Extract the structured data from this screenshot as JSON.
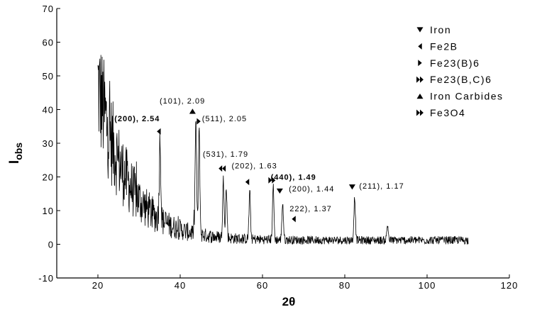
{
  "chart_data": {
    "type": "line",
    "xlabel": "2θ",
    "ylabel": "I",
    "ylabel_sub": "obs",
    "xlim": [
      10,
      120
    ],
    "ylim": [
      -10,
      70
    ],
    "x_ticks": [
      20,
      40,
      60,
      80,
      100,
      120
    ],
    "y_ticks": [
      -10,
      0,
      10,
      20,
      30,
      40,
      50,
      60,
      70
    ],
    "x_tick_labels": [
      "20",
      "40",
      "60",
      "80",
      "100",
      "120"
    ],
    "y_tick_labels": [
      "-10",
      "0",
      "10",
      "20",
      "30",
      "40",
      "50",
      "60",
      "70"
    ],
    "x_start": 20,
    "x_end": 110,
    "peaks": [
      {
        "x": 35.1,
        "height": 33
      },
      {
        "x": 43.8,
        "height": 38
      },
      {
        "x": 44.6,
        "height": 35
      },
      {
        "x": 50.5,
        "height": 20
      },
      {
        "x": 51.2,
        "height": 17
      },
      {
        "x": 56.9,
        "height": 16
      },
      {
        "x": 62.6,
        "height": 18
      },
      {
        "x": 64.9,
        "height": 13
      },
      {
        "x": 82.4,
        "height": 15
      },
      {
        "x": 90.4,
        "height": 6
      }
    ],
    "markers": [
      {
        "x": 34.8,
        "y": 33.5,
        "symbol": "triangle-left"
      },
      {
        "x": 43.0,
        "y": 39.5,
        "symbol": "triangle-up"
      },
      {
        "x": 44.5,
        "y": 36.5,
        "symbol": "triangle-right"
      },
      {
        "x": 50.2,
        "y": 22.5,
        "symbol": "double-left"
      },
      {
        "x": 56.3,
        "y": 18.5,
        "symbol": "triangle-left"
      },
      {
        "x": 62.3,
        "y": 19.0,
        "symbol": "double-right"
      },
      {
        "x": 64.2,
        "y": 15.8,
        "symbol": "triangle-down"
      },
      {
        "x": 67.6,
        "y": 7.5,
        "symbol": "triangle-left"
      },
      {
        "x": 81.8,
        "y": 17.0,
        "symbol": "triangle-down"
      }
    ],
    "annotations": [
      {
        "text": "(200), 2.54",
        "x": 24.0,
        "y": 36.5,
        "bold": true
      },
      {
        "text": "(101), 2.09",
        "x": 35.0,
        "y": 41.8,
        "bold": false
      },
      {
        "text": "(511), 2.05",
        "x": 45.3,
        "y": 36.5,
        "bold": false
      },
      {
        "text": "(531), 1.79",
        "x": 45.5,
        "y": 26.0,
        "bold": false
      },
      {
        "text": "(202), 1.63",
        "x": 52.5,
        "y": 22.5,
        "bold": false
      },
      {
        "text": "(440), 1.49",
        "x": 62.0,
        "y": 19.2,
        "bold": true
      },
      {
        "text": "(200), 1.44",
        "x": 66.4,
        "y": 15.7,
        "bold": false
      },
      {
        "text": "222), 1.37",
        "x": 66.6,
        "y": 9.8,
        "bold": false
      },
      {
        "text": "(211), 1.17",
        "x": 83.5,
        "y": 16.5,
        "bold": false
      }
    ],
    "legend": {
      "position": "top-right",
      "items": [
        {
          "label": "Iron",
          "symbol": "triangle-down"
        },
        {
          "label": "Fe2B",
          "symbol": "triangle-left"
        },
        {
          "label": "Fe23(B)6",
          "symbol": "triangle-right"
        },
        {
          "label": "Fe23(B,C)6",
          "symbol": "double-right"
        },
        {
          "label": "Iron Carbides",
          "symbol": "triangle-up"
        },
        {
          "label": "Fe3O4",
          "symbol": "double-right"
        }
      ]
    },
    "grid": false,
    "line_color": "#000000"
  }
}
